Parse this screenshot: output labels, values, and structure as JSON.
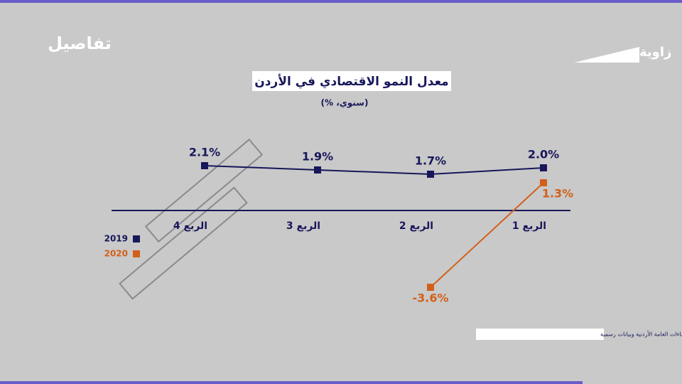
{
  "brand": "تفاصيل",
  "logo": "زاوية",
  "source": "دائرة الإحصاءات العامة الأردنية وبيانات رسمية",
  "chart_data": {
    "type": "line",
    "title": "معدل النمو الاقتصادي في الأردن",
    "subtitle": "(سنوي، %)",
    "categories": [
      "الربع 1",
      "الربع 2",
      "الربع 3",
      "الربع 4"
    ],
    "series": [
      {
        "name": "2019",
        "color": "#17175a",
        "values": [
          2.0,
          1.7,
          1.9,
          2.1
        ],
        "value_labels": [
          "2.0%",
          "1.7%",
          "1.9%",
          "2.1%"
        ]
      },
      {
        "name": "2020",
        "color": "#d2601a",
        "values": [
          1.3,
          -3.6,
          null,
          null
        ],
        "value_labels": [
          "1.3%",
          "-3.6%",
          null,
          null
        ]
      }
    ]
  }
}
